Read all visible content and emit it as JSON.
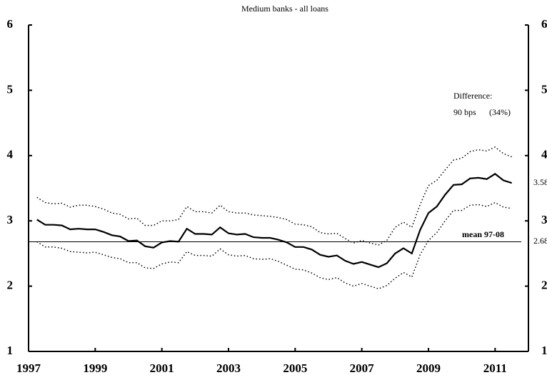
{
  "chart_data": {
    "type": "line",
    "title": "Medium banks - all loans",
    "x": [
      1997.25,
      1997.5,
      1997.75,
      1998,
      1998.25,
      1998.5,
      1998.75,
      1999,
      1999.25,
      1999.5,
      1999.75,
      2000,
      2000.25,
      2000.5,
      2000.75,
      2001,
      2001.25,
      2001.5,
      2001.75,
      2002,
      2002.25,
      2002.5,
      2002.75,
      2003,
      2003.25,
      2003.5,
      2003.75,
      2004,
      2004.25,
      2004.5,
      2004.75,
      2005,
      2005.25,
      2005.5,
      2005.75,
      2006,
      2006.25,
      2006.5,
      2006.75,
      2007,
      2007.25,
      2007.5,
      2007.75,
      2008,
      2008.25,
      2008.5,
      2008.75,
      2009,
      2009.25,
      2009.5,
      2009.75,
      2010,
      2010.25,
      2010.5,
      2010.75,
      2011,
      2011.25,
      2011.5
    ],
    "series": [
      {
        "color": "#000000",
        "style": "dotted",
        "values": [
          3.36,
          3.28,
          3.26,
          3.27,
          3.21,
          3.24,
          3.24,
          3.22,
          3.18,
          3.12,
          3.1,
          3.03,
          3.04,
          2.93,
          2.93,
          3.0,
          3.0,
          3.02,
          3.22,
          3.14,
          3.14,
          3.12,
          3.24,
          3.14,
          3.12,
          3.12,
          3.09,
          3.08,
          3.07,
          3.05,
          3.02,
          2.95,
          2.94,
          2.91,
          2.82,
          2.8,
          2.81,
          2.73,
          2.66,
          2.7,
          2.66,
          2.63,
          2.7,
          2.9,
          2.98,
          2.9,
          3.25,
          3.54,
          3.62,
          3.78,
          3.93,
          3.96,
          4.06,
          4.09,
          4.07,
          4.13,
          4.03,
          3.98
        ]
      },
      {
        "color": "#000000",
        "style": "solid",
        "values": [
          3.02,
          2.94,
          2.94,
          2.93,
          2.87,
          2.88,
          2.87,
          2.87,
          2.83,
          2.78,
          2.76,
          2.69,
          2.7,
          2.61,
          2.59,
          2.67,
          2.69,
          2.68,
          2.88,
          2.8,
          2.8,
          2.79,
          2.9,
          2.81,
          2.79,
          2.8,
          2.75,
          2.74,
          2.74,
          2.71,
          2.67,
          2.6,
          2.6,
          2.56,
          2.48,
          2.45,
          2.47,
          2.39,
          2.34,
          2.37,
          2.33,
          2.29,
          2.35,
          2.5,
          2.58,
          2.5,
          2.86,
          3.12,
          3.22,
          3.4,
          3.55,
          3.56,
          3.65,
          3.66,
          3.64,
          3.72,
          3.62,
          3.58
        ]
      },
      {
        "color": "#000000",
        "style": "dotted",
        "values": [
          2.68,
          2.6,
          2.6,
          2.58,
          2.53,
          2.52,
          2.51,
          2.52,
          2.48,
          2.44,
          2.42,
          2.36,
          2.36,
          2.28,
          2.27,
          2.34,
          2.37,
          2.36,
          2.53,
          2.47,
          2.47,
          2.46,
          2.57,
          2.48,
          2.46,
          2.47,
          2.42,
          2.41,
          2.42,
          2.38,
          2.32,
          2.26,
          2.25,
          2.2,
          2.13,
          2.1,
          2.13,
          2.05,
          2.0,
          2.04,
          2.0,
          1.96,
          2.01,
          2.12,
          2.21,
          2.14,
          2.48,
          2.7,
          2.82,
          3.0,
          3.16,
          3.16,
          3.24,
          3.25,
          3.22,
          3.28,
          3.21,
          3.19
        ]
      }
    ],
    "mean_line": {
      "value": 2.68,
      "label": "mean 97-08"
    },
    "end_labels": [
      {
        "value": 3.58,
        "label": "3.58"
      },
      {
        "value": 2.68,
        "label": "2.68"
      }
    ],
    "annotations": [
      "Difference:",
      "90 bps",
      "(34%)"
    ],
    "xlim": [
      1997,
      2012
    ],
    "xticks": [
      1997,
      1999,
      2001,
      2003,
      2005,
      2007,
      2009,
      2011
    ],
    "ylim": [
      1,
      6
    ],
    "yticks": [
      1,
      2,
      3,
      4,
      5,
      6
    ],
    "y2lim": [
      1,
      6
    ],
    "y2ticks": [
      1,
      2,
      3,
      4,
      5,
      6
    ]
  }
}
